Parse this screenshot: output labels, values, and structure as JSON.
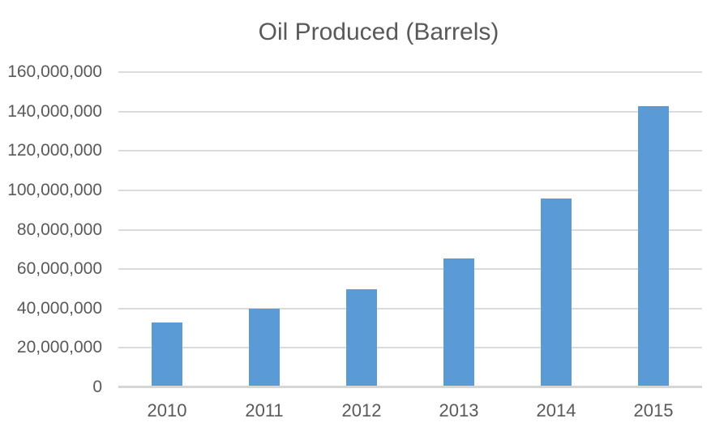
{
  "chart_data": {
    "type": "bar",
    "title": "Oil Produced (Barrels)",
    "categories": [
      "2010",
      "2011",
      "2012",
      "2013",
      "2014",
      "2015"
    ],
    "values": [
      32500000,
      39500000,
      49500000,
      65000000,
      95500000,
      142500000
    ],
    "xlabel": "",
    "ylabel": "",
    "ylim": [
      0,
      160000000
    ],
    "ytick_step": 20000000,
    "ytick_labels": [
      "0",
      "20,000,000",
      "40,000,000",
      "60,000,000",
      "80,000,000",
      "100,000,000",
      "120,000,000",
      "140,000,000",
      "160,000,000"
    ],
    "legend": "none",
    "grid": "horizontal",
    "colors": {
      "bar": "#5B9BD5",
      "gridline": "#DBDBDB",
      "axis_line": "#D6D6D6",
      "text": "#595959",
      "background": "#FFFFFF"
    }
  }
}
